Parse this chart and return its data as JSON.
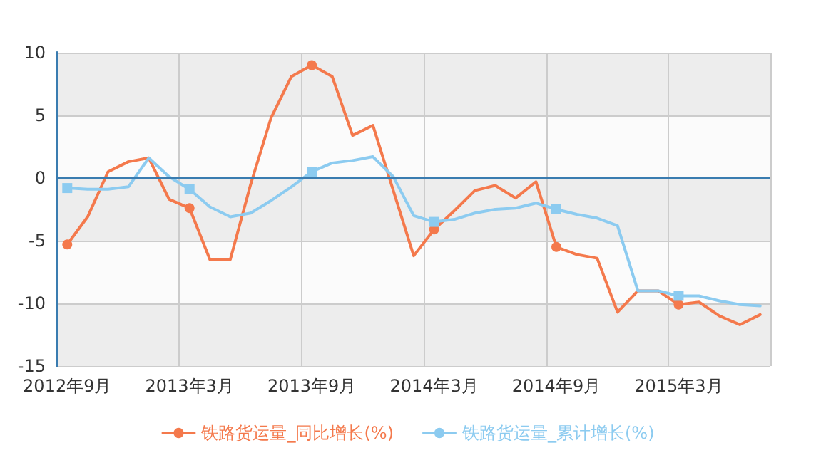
{
  "chart_data": {
    "type": "line",
    "categories": [
      "2012年9月",
      null,
      null,
      null,
      null,
      null,
      "2013年3月",
      null,
      null,
      null,
      null,
      null,
      "2013年9月",
      null,
      null,
      null,
      null,
      null,
      "2014年3月",
      null,
      null,
      null,
      null,
      null,
      "2014年9月",
      null,
      null,
      null,
      null,
      null,
      "2015年3月",
      null,
      null,
      null,
      null
    ],
    "series": [
      {
        "name": "铁路货运量_同比增长(%)",
        "color": "#f4794c",
        "marker": "none",
        "values": [
          -5.3,
          -3.1,
          0.5,
          1.3,
          1.6,
          -1.7,
          -2.4,
          -6.5,
          -6.5,
          -0.5,
          4.8,
          8.1,
          9.0,
          8.1,
          3.4,
          4.2,
          -1.0,
          -6.2,
          -4.1,
          -2.6,
          -1.0,
          -0.6,
          -1.6,
          -0.3,
          -5.5,
          -6.1,
          -6.4,
          -10.7,
          -9.0,
          -9.0,
          -10.1,
          -9.9,
          -11.0,
          -11.7,
          -10.9
        ]
      },
      {
        "name": "铁路货运量_累计增长(%)",
        "color": "#8ccbf0",
        "marker": "none",
        "values": [
          -0.8,
          -0.9,
          -0.9,
          -0.7,
          1.6,
          0.1,
          -0.9,
          -2.3,
          -3.1,
          -2.8,
          -1.8,
          -0.7,
          0.5,
          1.2,
          1.4,
          1.7,
          0.1,
          -3.0,
          -3.5,
          -3.3,
          -2.8,
          -2.5,
          -2.4,
          -2.0,
          -2.5,
          -2.9,
          -3.2,
          -3.8,
          -9.0,
          -9.0,
          -9.4,
          -9.4,
          -9.8,
          -10.1,
          -10.2
        ]
      },
      {
        "type": "scatter",
        "color": "#f4794c",
        "marker": "circle",
        "x": [
          "2012年9月",
          "2013年3月",
          "2013年9月",
          "2014年3月",
          "2014年9月",
          "2015年3月"
        ],
        "values": [
          -5.3,
          -2.4,
          9.0,
          -4.1,
          -5.5,
          -10.1
        ]
      },
      {
        "type": "scatter",
        "color": "#8ccbf0",
        "marker": "square",
        "x": [
          "2012年9月",
          "2013年3月",
          "2013年9月",
          "2014年3月",
          "2014年9月",
          "2015年3月"
        ],
        "values": [
          -0.8,
          -0.9,
          0.5,
          -3.5,
          -2.5,
          -9.4
        ]
      }
    ],
    "ref_lines": [
      {
        "axis": "y",
        "value": 0,
        "color": "#3a7cb0"
      }
    ],
    "ylim": [
      -15,
      10
    ],
    "yticks": [
      -15,
      -10,
      -5,
      0,
      5,
      10
    ],
    "grid": true,
    "legend": "bottom",
    "line_style": "solid"
  }
}
